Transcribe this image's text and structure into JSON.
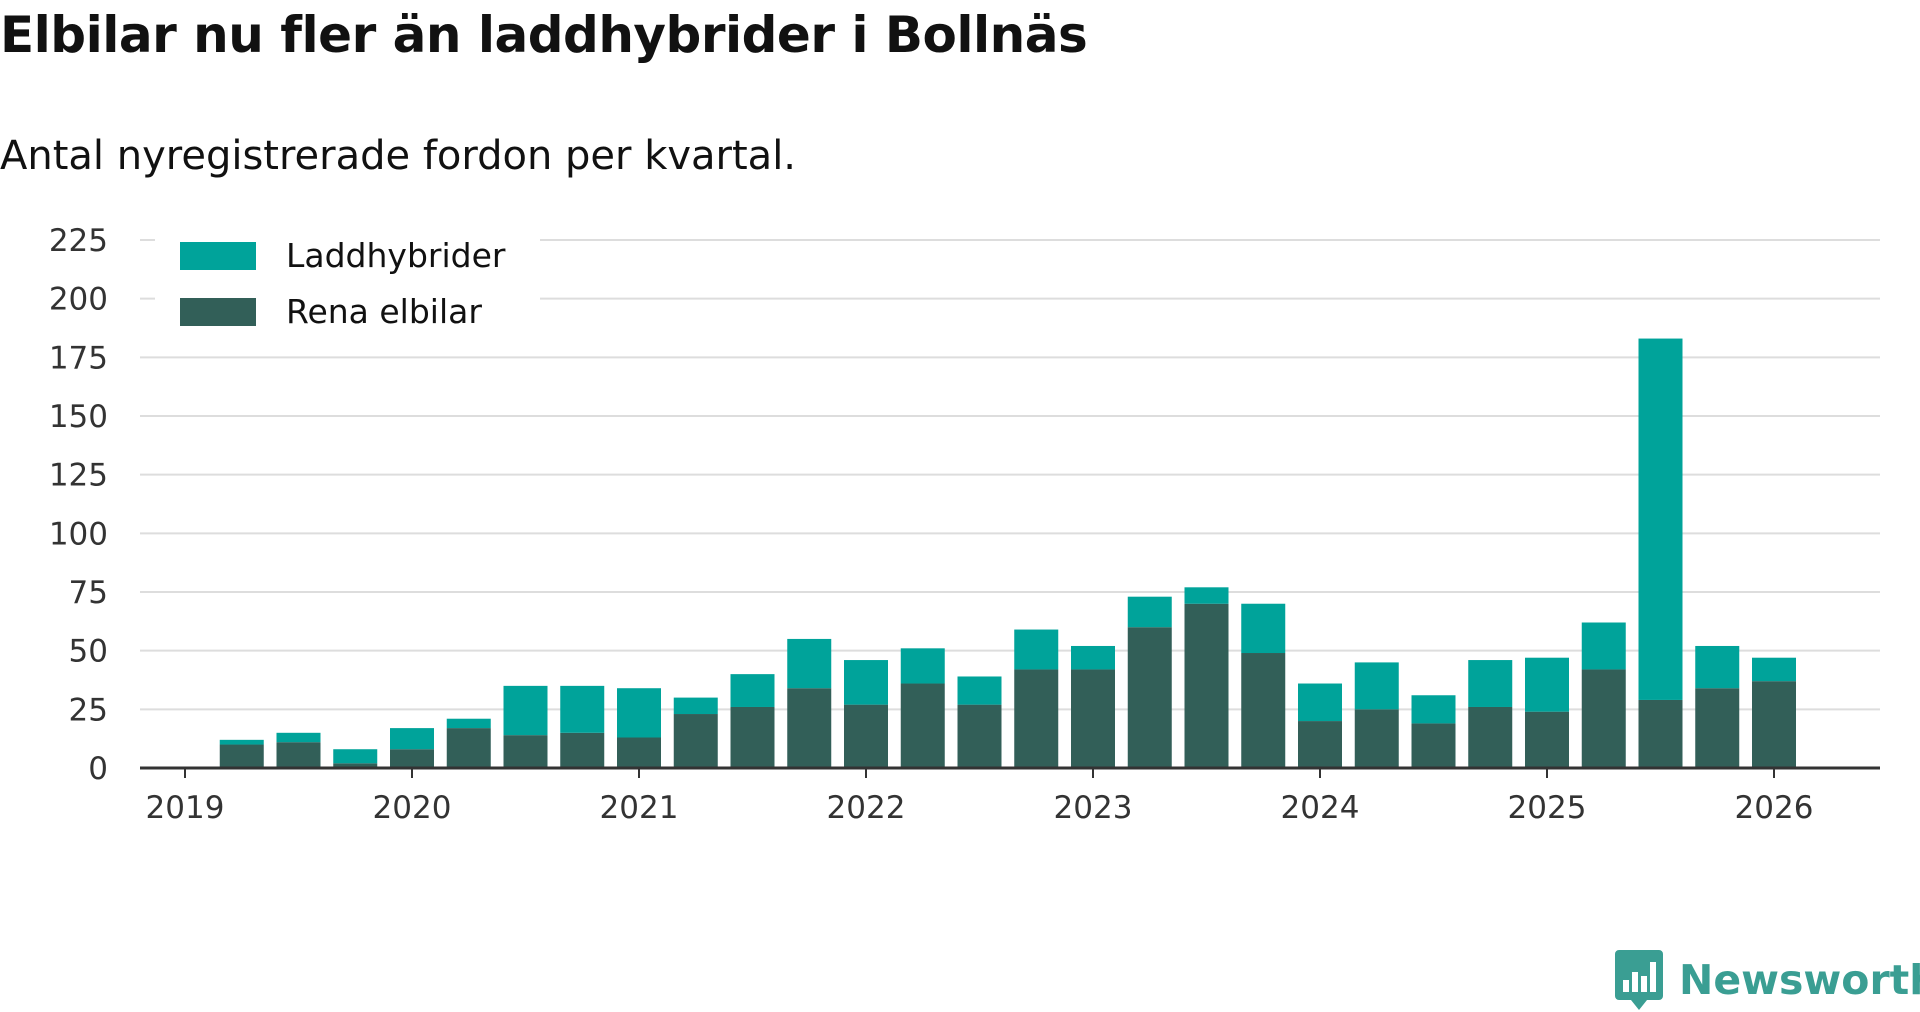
{
  "header": {
    "title": "Elbilar nu fler än laddhybrider i Bollnäs",
    "subtitle": "Antal nyregistrerade fordon per kvartal."
  },
  "brand": {
    "name": "Newsworthy",
    "icon": "newsworthy-logo-icon",
    "color": "#3a9e93"
  },
  "colors": {
    "phev": "#00a39a",
    "bev": "#325f58",
    "grid": "#dddddd",
    "axis": "#333333"
  },
  "chart_data": {
    "type": "bar",
    "stacked": true,
    "grid": true,
    "legend_position": "top-left",
    "ylim": [
      0,
      225
    ],
    "yticks": [
      0,
      25,
      50,
      75,
      100,
      125,
      150,
      175,
      200,
      225
    ],
    "xticks": [
      "2019",
      "2020",
      "2021",
      "2022",
      "2023",
      "2024",
      "2025",
      "2026"
    ],
    "xlabel": "",
    "ylabel": "",
    "categories": [
      "2019 Q1",
      "2019 Q2",
      "2019 Q3",
      "2019 Q4",
      "2020 Q1",
      "2020 Q2",
      "2020 Q3",
      "2020 Q4",
      "2021 Q1",
      "2021 Q2",
      "2021 Q3",
      "2021 Q4",
      "2022 Q1",
      "2022 Q2",
      "2022 Q3",
      "2022 Q4",
      "2023 Q1",
      "2023 Q2",
      "2023 Q3",
      "2023 Q4",
      "2024 Q1",
      "2024 Q2",
      "2024 Q3",
      "2024 Q4",
      "2025 Q1",
      "2025 Q2",
      "2025 Q3",
      "2025 Q4",
      "2026 Q1"
    ],
    "series": [
      {
        "name": "Rena elbilar",
        "color": "#325f58",
        "values": [
          null,
          10,
          11,
          2,
          8,
          17,
          14,
          15,
          13,
          23,
          26,
          34,
          27,
          36,
          27,
          42,
          42,
          60,
          70,
          49,
          20,
          25,
          19,
          26,
          24,
          42,
          29,
          34,
          37
        ]
      },
      {
        "name": "Laddhybrider",
        "color": "#00a39a",
        "values": [
          null,
          2,
          4,
          6,
          9,
          4,
          21,
          20,
          21,
          7,
          14,
          21,
          19,
          15,
          12,
          17,
          10,
          13,
          7,
          21,
          16,
          20,
          12,
          20,
          23,
          20,
          154,
          18,
          10
        ]
      }
    ],
    "legend": [
      {
        "label": "Laddhybrider",
        "color": "#00a39a"
      },
      {
        "label": "Rena elbilar",
        "color": "#325f58"
      }
    ]
  }
}
